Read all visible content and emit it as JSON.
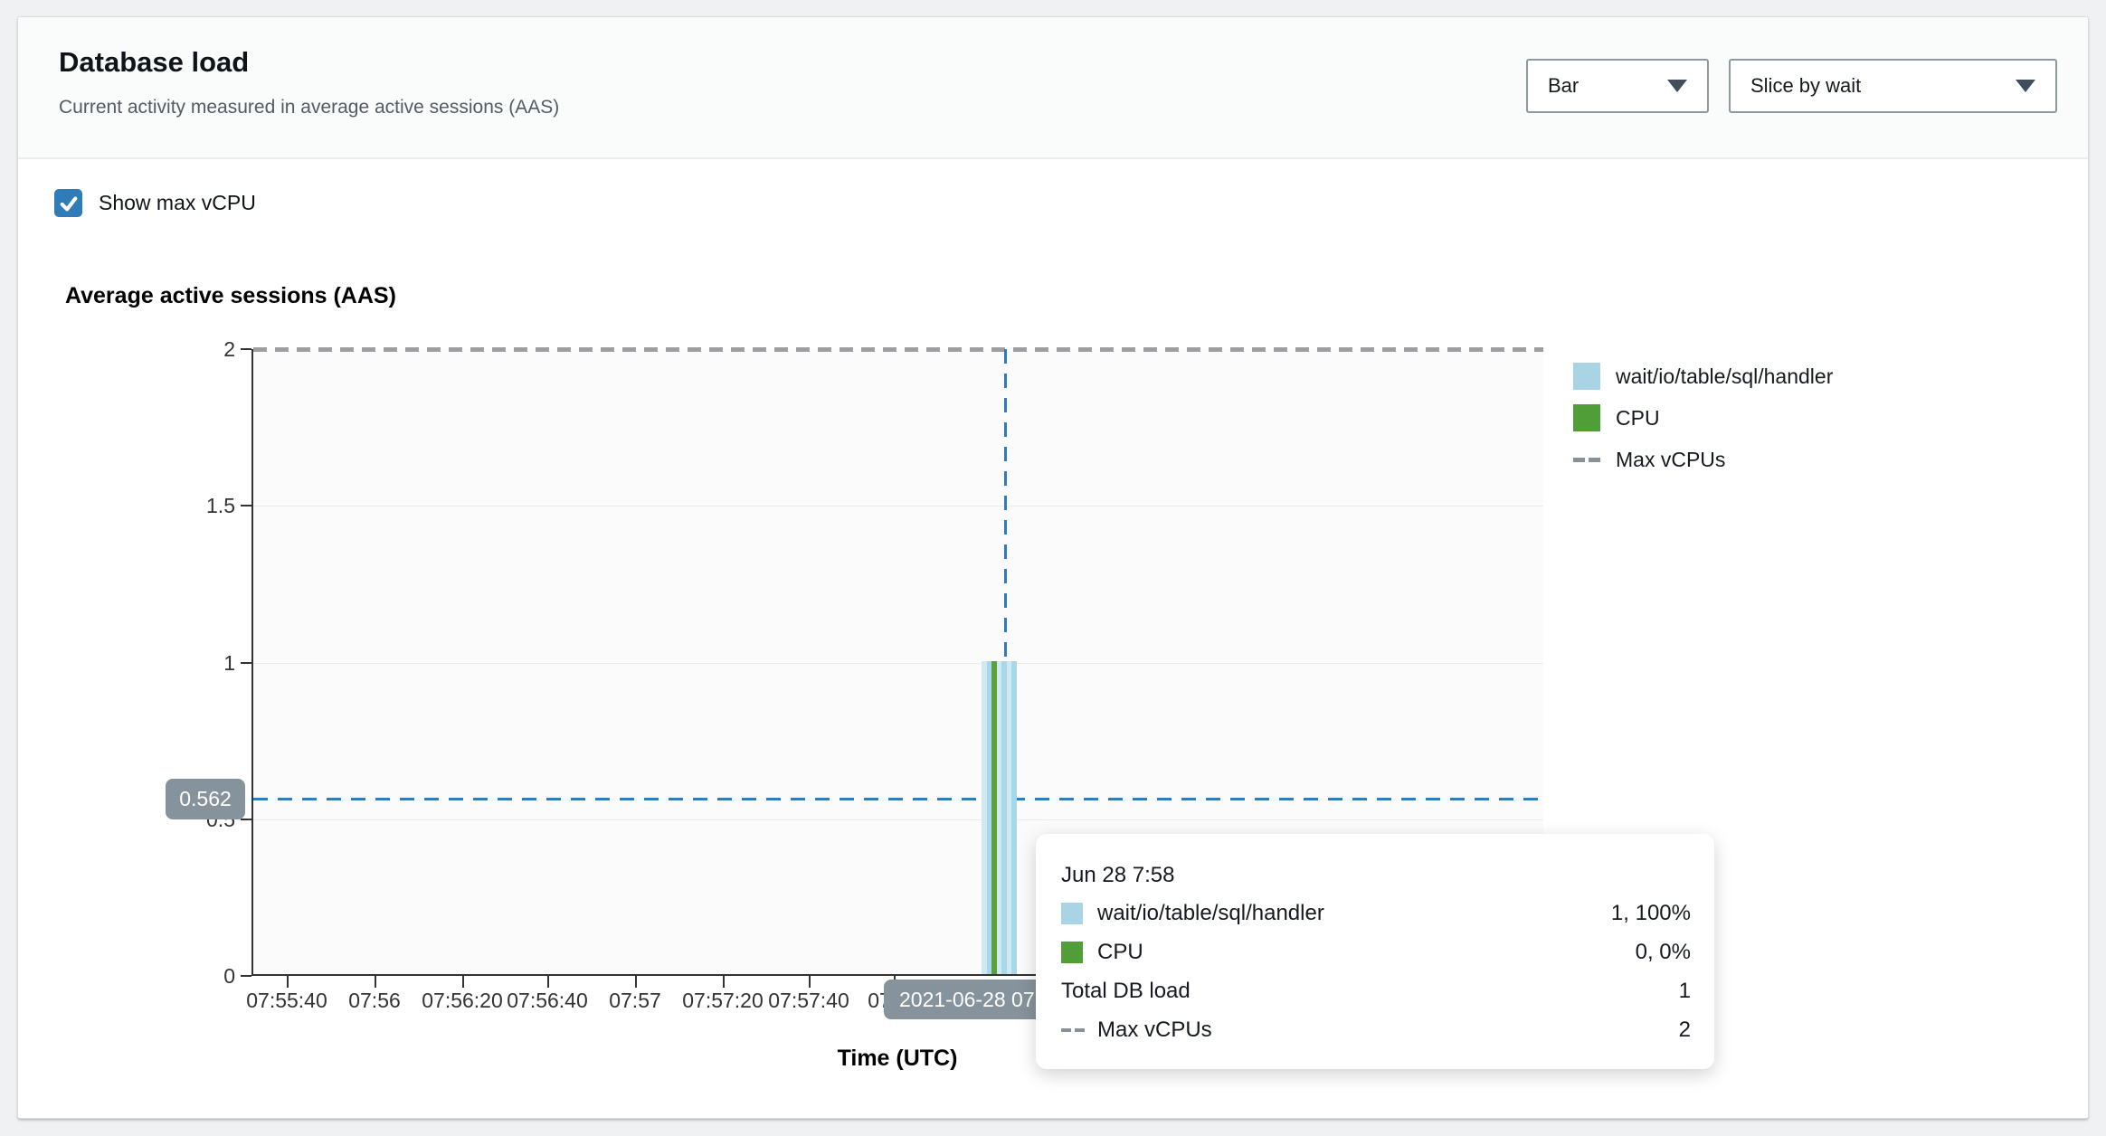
{
  "panel": {
    "title": "Database load",
    "subtitle": "Current activity measured in average active sessions (AAS)"
  },
  "toolbar": {
    "chart_type_dropdown": {
      "value": "Bar"
    },
    "slice_by_dropdown": {
      "value": "Slice by wait"
    }
  },
  "controls": {
    "show_max_vcpu": {
      "label": "Show max vCPU",
      "checked": true
    }
  },
  "chart": {
    "title": "Average active sessions (AAS)",
    "xlabel": "Time (UTC)",
    "y_ticks": [
      "2",
      "1.5",
      "1",
      "0.5",
      "0"
    ],
    "x_ticks": [
      "07:55:40",
      "07:56",
      "07:56:20",
      "07:56:40",
      "07:57",
      "07:57:20",
      "07:57:40",
      "07:58"
    ],
    "crosshair": {
      "y_label": "0.562",
      "x_label": "2021-06-28 07"
    }
  },
  "legend": {
    "items": [
      {
        "label": "wait/io/table/sql/handler",
        "swatch": "#a8d4e6"
      },
      {
        "label": "CPU",
        "swatch": "#4f9e38"
      },
      {
        "label": "Max vCPUs",
        "swatch": "dashed-gray"
      }
    ]
  },
  "tooltip": {
    "title": "Jun 28 7:58",
    "rows": [
      {
        "icon": "square",
        "color": "#a8d4e6",
        "label": "wait/io/table/sql/handler",
        "value": "1, 100%"
      },
      {
        "icon": "square",
        "color": "#4f9e38",
        "label": "CPU",
        "value": "0, 0%"
      },
      {
        "icon": "none",
        "color": "",
        "label": "Total DB load",
        "value": "1"
      },
      {
        "icon": "dashes",
        "color": "#8a9196",
        "label": "Max vCPUs",
        "value": "2"
      }
    ]
  },
  "chart_visual": {
    "bar_stripes": [
      "#cfe8f1",
      "#a8d7e8",
      "#5ba041",
      "#cfe8f1",
      "#a8d7e8",
      "#cfe8f1",
      "#a8d7e8"
    ],
    "colors": {
      "crosshair_blue": "#2e7cb8",
      "max_vcpu_dash": "#9e9ea0",
      "badge_gray": "#87939c",
      "checkbox_blue": "#2e7db8",
      "wait_blue": "#a8d4e6",
      "cpu_green": "#4f9e38"
    }
  },
  "chart_data": {
    "type": "bar",
    "title": "Average active sessions (AAS)",
    "xlabel": "Time (UTC)",
    "ylabel": "Average active sessions (AAS)",
    "ylim": [
      0,
      2
    ],
    "y_tick_values": [
      0,
      0.5,
      1,
      1.5,
      2
    ],
    "x_tick_labels": [
      "07:55:40",
      "07:56",
      "07:56:20",
      "07:56:40",
      "07:57",
      "07:57:20",
      "07:57:40",
      "07:58"
    ],
    "legend_position": "right",
    "grid": true,
    "series": [
      {
        "name": "wait/io/table/sql/handler",
        "type": "bar",
        "points": [
          {
            "x": "2021-06-28 07:58",
            "y": 1
          }
        ]
      },
      {
        "name": "CPU",
        "type": "bar",
        "points": [
          {
            "x": "2021-06-28 07:58",
            "y": 0
          }
        ]
      },
      {
        "name": "Max vCPUs",
        "type": "reference-line",
        "value": 2
      }
    ],
    "hover": {
      "time": "Jun 28 7:58",
      "total_db_load": 1,
      "max_vcpus": 2,
      "crosshair_y": 0.562
    }
  }
}
